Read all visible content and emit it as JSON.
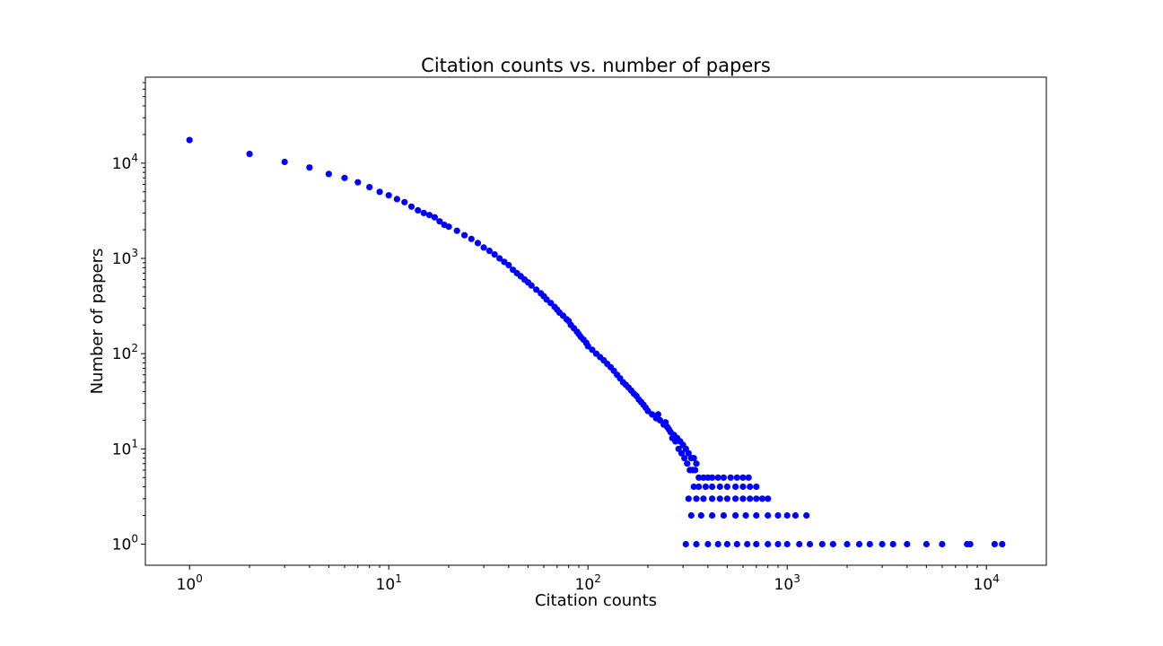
{
  "chart_data": {
    "type": "scatter",
    "title": "Citation counts vs. number of papers",
    "xlabel": "Citation counts",
    "ylabel": "Number of papers",
    "xscale": "log",
    "yscale": "log",
    "xlim": [
      0.6,
      20000
    ],
    "ylim": [
      0.6,
      80000
    ],
    "grid": false,
    "marker_color": "#0000ff",
    "x_ticks": [
      {
        "value": 1,
        "base": "10",
        "exp": "0"
      },
      {
        "value": 10,
        "base": "10",
        "exp": "1"
      },
      {
        "value": 100,
        "base": "10",
        "exp": "2"
      },
      {
        "value": 1000,
        "base": "10",
        "exp": "3"
      },
      {
        "value": 10000,
        "base": "10",
        "exp": "4"
      }
    ],
    "y_ticks": [
      {
        "value": 1,
        "base": "10",
        "exp": "0"
      },
      {
        "value": 10,
        "base": "10",
        "exp": "1"
      },
      {
        "value": 100,
        "base": "10",
        "exp": "2"
      },
      {
        "value": 1000,
        "base": "10",
        "exp": "3"
      },
      {
        "value": 10000,
        "base": "10",
        "exp": "4"
      }
    ],
    "points": [
      [
        1,
        17500
      ],
      [
        2,
        12500
      ],
      [
        3,
        10300
      ],
      [
        4,
        9000
      ],
      [
        5,
        7700
      ],
      [
        6,
        7000
      ],
      [
        7,
        6300
      ],
      [
        8,
        5600
      ],
      [
        9,
        5000
      ],
      [
        10,
        4600
      ],
      [
        11,
        4200
      ],
      [
        12,
        3900
      ],
      [
        13,
        3500
      ],
      [
        14,
        3200
      ],
      [
        15,
        3000
      ],
      [
        16,
        2850
      ],
      [
        17,
        2700
      ],
      [
        18,
        2450
      ],
      [
        19,
        2250
      ],
      [
        20,
        2150
      ],
      [
        22,
        1950
      ],
      [
        24,
        1750
      ],
      [
        26,
        1600
      ],
      [
        28,
        1450
      ],
      [
        30,
        1300
      ],
      [
        32,
        1200
      ],
      [
        34,
        1100
      ],
      [
        36,
        1000
      ],
      [
        38,
        920
      ],
      [
        40,
        850
      ],
      [
        42,
        760
      ],
      [
        44,
        700
      ],
      [
        46,
        650
      ],
      [
        48,
        600
      ],
      [
        50,
        560
      ],
      [
        52,
        520
      ],
      [
        55,
        470
      ],
      [
        58,
        430
      ],
      [
        60,
        400
      ],
      [
        62,
        370
      ],
      [
        65,
        340
      ],
      [
        68,
        310
      ],
      [
        70,
        290
      ],
      [
        72,
        270
      ],
      [
        75,
        250
      ],
      [
        78,
        230
      ],
      [
        80,
        220
      ],
      [
        82,
        200
      ],
      [
        85,
        185
      ],
      [
        88,
        170
      ],
      [
        90,
        160
      ],
      [
        92,
        150
      ],
      [
        95,
        140
      ],
      [
        98,
        130
      ],
      [
        100,
        120
      ],
      [
        105,
        110
      ],
      [
        110,
        100
      ],
      [
        115,
        92
      ],
      [
        120,
        85
      ],
      [
        125,
        78
      ],
      [
        130,
        72
      ],
      [
        135,
        66
      ],
      [
        140,
        60
      ],
      [
        145,
        55
      ],
      [
        150,
        50
      ],
      [
        155,
        47
      ],
      [
        160,
        44
      ],
      [
        165,
        41
      ],
      [
        170,
        38
      ],
      [
        175,
        36
      ],
      [
        180,
        33
      ],
      [
        185,
        31
      ],
      [
        190,
        29
      ],
      [
        195,
        27
      ],
      [
        200,
        25
      ],
      [
        210,
        23
      ],
      [
        220,
        21
      ],
      [
        230,
        20
      ],
      [
        240,
        18
      ],
      [
        250,
        17
      ],
      [
        260,
        15
      ],
      [
        270,
        14
      ],
      [
        280,
        13
      ],
      [
        290,
        12
      ],
      [
        300,
        11
      ],
      [
        310,
        10
      ],
      [
        320,
        9
      ],
      [
        330,
        8
      ],
      [
        340,
        8
      ],
      [
        350,
        7
      ],
      [
        225,
        23
      ],
      [
        245,
        19
      ],
      [
        255,
        16
      ],
      [
        265,
        13
      ],
      [
        275,
        12
      ],
      [
        285,
        10
      ],
      [
        295,
        9
      ],
      [
        305,
        8
      ],
      [
        315,
        7
      ],
      [
        325,
        6
      ],
      [
        335,
        6
      ],
      [
        345,
        6
      ],
      [
        360,
        5
      ],
      [
        380,
        5
      ],
      [
        400,
        5
      ],
      [
        420,
        5
      ],
      [
        450,
        5
      ],
      [
        480,
        5
      ],
      [
        520,
        5
      ],
      [
        560,
        5
      ],
      [
        600,
        5
      ],
      [
        640,
        5
      ],
      [
        340,
        4
      ],
      [
        360,
        4
      ],
      [
        390,
        4
      ],
      [
        420,
        4
      ],
      [
        460,
        4
      ],
      [
        500,
        4
      ],
      [
        550,
        4
      ],
      [
        600,
        4
      ],
      [
        650,
        4
      ],
      [
        700,
        4
      ],
      [
        320,
        3
      ],
      [
        350,
        3
      ],
      [
        380,
        3
      ],
      [
        420,
        3
      ],
      [
        460,
        3
      ],
      [
        500,
        3
      ],
      [
        550,
        3
      ],
      [
        600,
        3
      ],
      [
        650,
        3
      ],
      [
        700,
        3
      ],
      [
        750,
        3
      ],
      [
        800,
        3
      ],
      [
        330,
        2
      ],
      [
        370,
        2
      ],
      [
        420,
        2
      ],
      [
        480,
        2
      ],
      [
        550,
        2
      ],
      [
        620,
        2
      ],
      [
        700,
        2
      ],
      [
        800,
        2
      ],
      [
        900,
        2
      ],
      [
        1000,
        2
      ],
      [
        1100,
        2
      ],
      [
        1250,
        2
      ],
      [
        310,
        1
      ],
      [
        350,
        1
      ],
      [
        400,
        1
      ],
      [
        450,
        1
      ],
      [
        500,
        1
      ],
      [
        560,
        1
      ],
      [
        630,
        1
      ],
      [
        700,
        1
      ],
      [
        800,
        1
      ],
      [
        900,
        1
      ],
      [
        1000,
        1
      ],
      [
        1150,
        1
      ],
      [
        1300,
        1
      ],
      [
        1500,
        1
      ],
      [
        1700,
        1
      ],
      [
        2000,
        1
      ],
      [
        2300,
        1
      ],
      [
        2600,
        1
      ],
      [
        3000,
        1
      ],
      [
        3400,
        1
      ],
      [
        4000,
        1
      ],
      [
        5000,
        1
      ],
      [
        6000,
        1
      ],
      [
        8000,
        1
      ],
      [
        8300,
        1
      ],
      [
        11000,
        1
      ],
      [
        12000,
        1
      ]
    ]
  }
}
